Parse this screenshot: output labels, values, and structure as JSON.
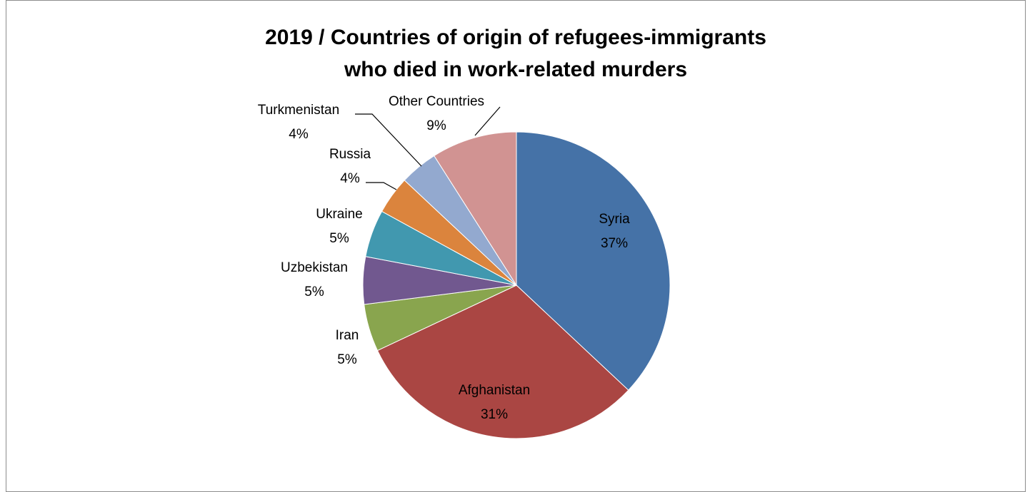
{
  "chart_data": {
    "type": "pie",
    "title_lines": [
      "2019 / Countries of origin of refugees-immigrants",
      "who died in work-related murders"
    ],
    "slices": [
      {
        "name": "Syria",
        "value": 37,
        "label": "37%",
        "color": "#4572A7"
      },
      {
        "name": "Afghanistan",
        "value": 31,
        "label": "31%",
        "color": "#AA4643"
      },
      {
        "name": "Iran",
        "value": 5,
        "label": "5%",
        "color": "#89A54E"
      },
      {
        "name": "Uzbekistan",
        "value": 5,
        "label": "5%",
        "color": "#71588F"
      },
      {
        "name": "Ukraine",
        "value": 5,
        "label": "5%",
        "color": "#4198AF"
      },
      {
        "name": "Russia",
        "value": 4,
        "label": "4%",
        "color": "#DB843D"
      },
      {
        "name": "Turkmenistan",
        "value": 4,
        "label": "4%",
        "color": "#93A9CF"
      },
      {
        "name": "Other Countries",
        "value": 9,
        "label": "9%",
        "color": "#D19392"
      }
    ],
    "legend": "none"
  }
}
